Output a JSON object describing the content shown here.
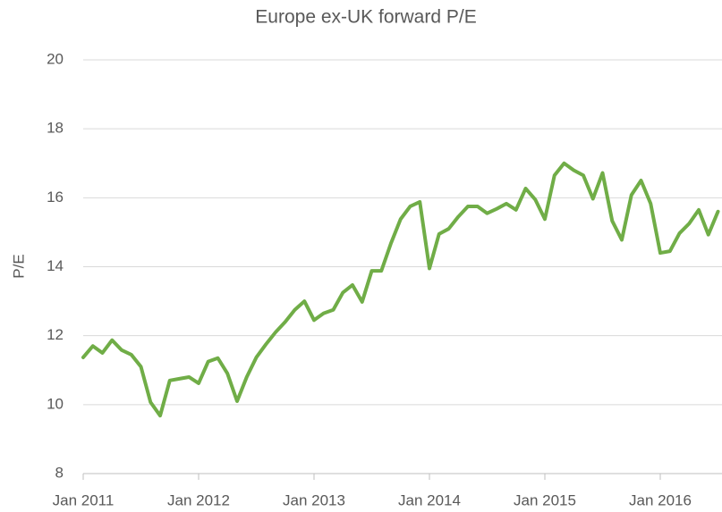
{
  "chart_data": {
    "type": "line",
    "title": "Europe ex-UK forward P/E",
    "y_label": "P/E",
    "categories": [
      "Jan 2011",
      null,
      null,
      null,
      null,
      null,
      null,
      null,
      null,
      null,
      null,
      null,
      "Jan 2012",
      null,
      null,
      null,
      null,
      null,
      null,
      null,
      null,
      null,
      null,
      null,
      "Jan 2013",
      null,
      null,
      null,
      null,
      null,
      null,
      null,
      null,
      null,
      null,
      null,
      "Jan 2014",
      null,
      null,
      null,
      null,
      null,
      null,
      null,
      null,
      null,
      null,
      null,
      "Jan 2015",
      null,
      null,
      null,
      null,
      null,
      null,
      null,
      null,
      null,
      null,
      null,
      "Jan 2016",
      null,
      null,
      null,
      null,
      null,
      null
    ],
    "series": [
      {
        "name": "Europe ex-UK forward P/E",
        "color": "#70ad47",
        "values": [
          11.37,
          11.7,
          11.5,
          11.87,
          11.58,
          11.45,
          11.1,
          10.07,
          9.68,
          10.7,
          10.75,
          10.8,
          10.62,
          11.25,
          11.35,
          10.9,
          10.1,
          10.8,
          11.37,
          11.75,
          12.1,
          12.4,
          12.75,
          13.0,
          12.45,
          12.65,
          12.75,
          13.25,
          13.47,
          12.98,
          13.88,
          13.88,
          14.68,
          15.38,
          15.75,
          15.88,
          13.95,
          14.95,
          15.1,
          15.45,
          15.75,
          15.75,
          15.55,
          15.68,
          15.83,
          15.65,
          16.27,
          15.95,
          15.38,
          16.65,
          17.0,
          16.8,
          16.65,
          15.97,
          16.72,
          15.33,
          14.78,
          16.08,
          16.5,
          15.83,
          14.4,
          14.45,
          14.97,
          15.25,
          15.65,
          14.93,
          15.6
        ]
      }
    ],
    "ylim": [
      8,
      20
    ],
    "yticks": [
      8,
      10,
      12,
      14,
      16,
      18,
      20
    ],
    "grid": true
  }
}
